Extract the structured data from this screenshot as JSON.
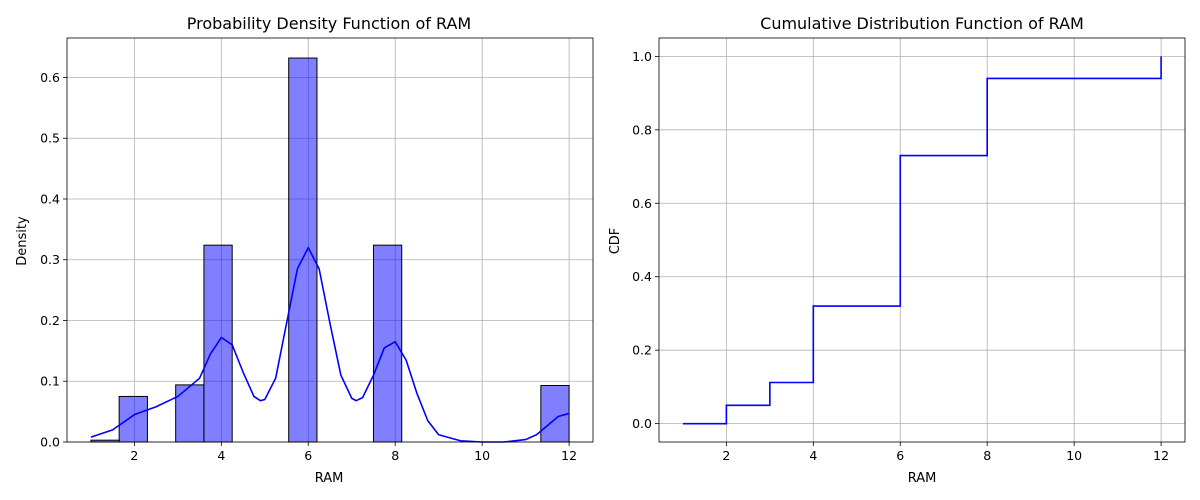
{
  "chart_data": [
    {
      "type": "bar",
      "title": "Probability Density Function of RAM",
      "xlabel": "RAM",
      "ylabel": "Density",
      "xlim": [
        0.45,
        12.55
      ],
      "ylim": [
        0,
        0.665
      ],
      "xticks": [
        2,
        4,
        6,
        8,
        10,
        12
      ],
      "yticks": [
        0.0,
        0.1,
        0.2,
        0.3,
        0.4,
        0.5,
        0.6
      ],
      "grid": true,
      "bar_color": "#0000ff",
      "bar_alpha": 0.5,
      "bars": [
        {
          "x0": 1.0,
          "x1": 1.65,
          "value": 0.003
        },
        {
          "x0": 1.65,
          "x1": 2.3,
          "value": 0.075
        },
        {
          "x0": 2.95,
          "x1": 3.6,
          "value": 0.094
        },
        {
          "x0": 3.6,
          "x1": 4.25,
          "value": 0.324
        },
        {
          "x0": 5.55,
          "x1": 6.2,
          "value": 0.632
        },
        {
          "x0": 7.5,
          "x1": 8.15,
          "value": 0.324
        },
        {
          "x0": 11.35,
          "x1": 12.0,
          "value": 0.093
        }
      ],
      "kde": {
        "color": "#0000ff",
        "x": [
          1.0,
          1.5,
          2.0,
          2.5,
          3.0,
          3.5,
          3.75,
          4.0,
          4.25,
          4.5,
          4.75,
          4.9,
          5.0,
          5.25,
          5.5,
          5.75,
          6.0,
          6.25,
          6.5,
          6.75,
          7.0,
          7.1,
          7.25,
          7.5,
          7.75,
          8.0,
          8.25,
          8.5,
          8.75,
          9.0,
          9.5,
          10.0,
          10.5,
          11.0,
          11.25,
          11.5,
          11.75,
          12.0
        ],
        "y": [
          0.008,
          0.02,
          0.045,
          0.058,
          0.075,
          0.105,
          0.145,
          0.172,
          0.16,
          0.115,
          0.075,
          0.068,
          0.07,
          0.105,
          0.195,
          0.285,
          0.32,
          0.285,
          0.195,
          0.11,
          0.072,
          0.068,
          0.073,
          0.11,
          0.155,
          0.165,
          0.135,
          0.08,
          0.035,
          0.012,
          0.002,
          0.0,
          0.0,
          0.004,
          0.012,
          0.027,
          0.042,
          0.047
        ]
      }
    },
    {
      "type": "line",
      "title": "Cumulative Distribution Function of RAM",
      "xlabel": "RAM",
      "ylabel": "CDF",
      "xlim": [
        0.45,
        12.55
      ],
      "ylim": [
        -0.05,
        1.05
      ],
      "xticks": [
        2,
        4,
        6,
        8,
        10,
        12
      ],
      "yticks": [
        0.0,
        0.2,
        0.4,
        0.6,
        0.8,
        1.0
      ],
      "yticklabels": [
        "0.0",
        "0.2",
        "0.4",
        "0.6",
        "0.8",
        "1.0"
      ],
      "grid": true,
      "step": true,
      "color": "#0000ff",
      "x": [
        1,
        2,
        3,
        4,
        6,
        8,
        12
      ],
      "y": [
        0.0,
        0.05,
        0.112,
        0.32,
        0.73,
        0.94,
        1.0
      ]
    }
  ]
}
